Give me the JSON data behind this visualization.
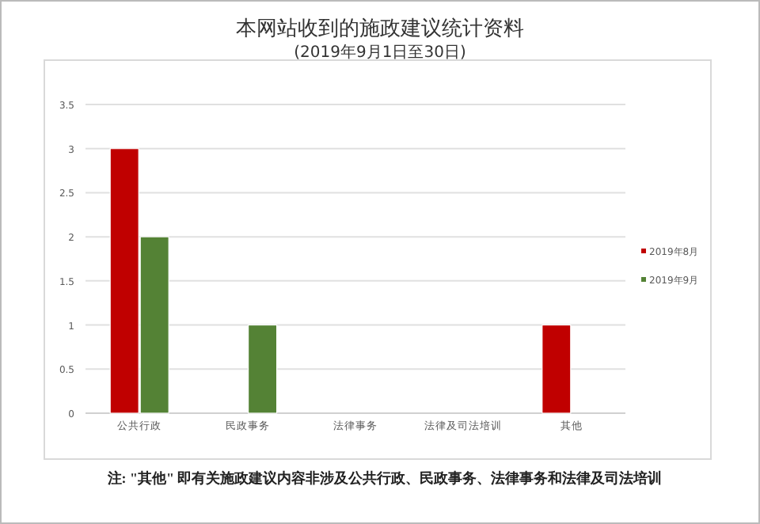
{
  "chart_data": {
    "type": "bar",
    "title": "本网站收到的施政建议统计资料",
    "subtitle": "(2019年9月1日至30日)",
    "categories": [
      "公共行政",
      "民政事务",
      "法律事务",
      "法律及司法培训",
      "其他"
    ],
    "series": [
      {
        "name": "2019年8月",
        "color": "#c00000",
        "values": [
          3,
          0,
          0,
          0,
          1
        ]
      },
      {
        "name": "2019年9月",
        "color": "#548235",
        "values": [
          2,
          1,
          0,
          0,
          0
        ]
      }
    ],
    "ylim": [
      0,
      3.5
    ],
    "yticks": [
      0,
      0.5,
      1,
      1.5,
      2,
      2.5,
      3,
      3.5
    ],
    "grid": "y",
    "legend": "right",
    "annotations": [
      "注: \"其他\" 即有关施政建议内容非涉及公共行政、民政事务、法律事务和法律及司法培训"
    ]
  }
}
